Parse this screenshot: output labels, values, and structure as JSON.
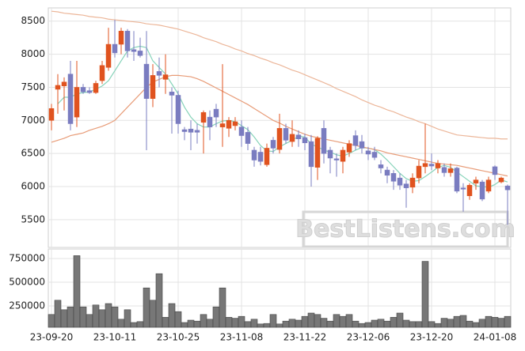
{
  "chart_data": {
    "type": "candlestick",
    "categories": [
      "23-09-20",
      null,
      null,
      null,
      null,
      null,
      null,
      null,
      null,
      null,
      "23-10-11",
      null,
      null,
      null,
      null,
      null,
      null,
      null,
      null,
      null,
      "23-10-25",
      null,
      null,
      null,
      null,
      null,
      null,
      null,
      null,
      null,
      "23-11-08",
      null,
      null,
      null,
      null,
      null,
      null,
      null,
      null,
      null,
      "23-11-22",
      null,
      null,
      null,
      null,
      null,
      null,
      null,
      null,
      null,
      "23-12-06",
      null,
      null,
      null,
      null,
      null,
      null,
      null,
      null,
      null,
      "23-12-20",
      null,
      null,
      null,
      null,
      null,
      null,
      null,
      null,
      null,
      "24-01-08",
      null,
      null
    ],
    "open": [
      7000,
      7470,
      7520,
      7700,
      7050,
      7500,
      7450,
      7420,
      7600,
      7800,
      8150,
      8150,
      8350,
      8070,
      8050,
      7850,
      7330,
      7740,
      7620,
      7430,
      7380,
      6860,
      6870,
      6850,
      6970,
      7050,
      7170,
      6900,
      6880,
      6920,
      6900,
      6820,
      6550,
      6520,
      6330,
      6700,
      6560,
      6880,
      6680,
      6780,
      6740,
      6680,
      6290,
      6880,
      6550,
      6420,
      6380,
      6520,
      6770,
      6680,
      6540,
      6520,
      6330,
      6250,
      6200,
      6130,
      6040,
      5990,
      6130,
      6300,
      6340,
      6280,
      6290,
      6210,
      6280,
      5980,
      5860,
      6050,
      6070,
      5930,
      6300,
      6070,
      6010
    ],
    "high": [
      7250,
      7700,
      7650,
      7900,
      7900,
      7550,
      7500,
      7600,
      7900,
      8400,
      8520,
      8400,
      8380,
      8350,
      8250,
      8350,
      7850,
      7950,
      8000,
      7500,
      7450,
      6900,
      7000,
      6950,
      7150,
      7150,
      7250,
      7850,
      7050,
      7050,
      7000,
      6900,
      6600,
      6600,
      6650,
      6750,
      7100,
      6950,
      7000,
      6850,
      6800,
      6780,
      6760,
      7000,
      6600,
      6500,
      6600,
      6700,
      6850,
      6780,
      6600,
      6600,
      6400,
      6300,
      6250,
      6200,
      6100,
      6200,
      6400,
      6950,
      6500,
      6400,
      6350,
      6350,
      6300,
      6050,
      6050,
      6150,
      6100,
      6150,
      6320,
      6150,
      6030
    ],
    "low": [
      6850,
      7100,
      7150,
      6850,
      6900,
      7400,
      7400,
      7400,
      7550,
      7750,
      7950,
      8000,
      7950,
      7900,
      7950,
      6550,
      7200,
      7500,
      7400,
      6800,
      6800,
      6700,
      6550,
      6650,
      6500,
      6700,
      6900,
      6600,
      6750,
      6850,
      6600,
      6550,
      6300,
      6320,
      6300,
      6500,
      6500,
      6650,
      6600,
      6600,
      6550,
      6000,
      6100,
      6350,
      6200,
      6150,
      6200,
      6450,
      6550,
      6500,
      6400,
      6400,
      6200,
      6050,
      5950,
      5950,
      5680,
      5900,
      6050,
      6200,
      6250,
      6200,
      6150,
      6150,
      5900,
      5620,
      5800,
      5950,
      5780,
      5900,
      6100,
      6050,
      5420
    ],
    "close": [
      7180,
      7530,
      7580,
      6950,
      7500,
      7430,
      7420,
      7560,
      7830,
      8150,
      8020,
      8350,
      8050,
      8040,
      7980,
      7330,
      7680,
      7680,
      7690,
      7380,
      6950,
      6830,
      6820,
      6820,
      7120,
      6900,
      7050,
      6950,
      7000,
      6980,
      6770,
      6650,
      6400,
      6380,
      6580,
      6580,
      6880,
      6700,
      6790,
      6720,
      6660,
      6300,
      6730,
      6500,
      6430,
      6400,
      6550,
      6650,
      6620,
      6580,
      6490,
      6440,
      6280,
      6170,
      6080,
      6020,
      5980,
      6130,
      6310,
      6350,
      6310,
      6350,
      6210,
      6270,
      5930,
      5960,
      6020,
      6100,
      5810,
      6100,
      6180,
      6130,
      5950
    ],
    "up_color": "#e0531f",
    "down_color": "#7a7cc0",
    "ylim": [
      5080,
      8700
    ],
    "yticks": [
      5500,
      6000,
      6500,
      7000,
      7500,
      8000,
      8500
    ],
    "lines": [
      {
        "color": "#86d3b9",
        "values": [
          null,
          7250,
          7350,
          7350,
          7400,
          7420,
          7430,
          7470,
          7520,
          7600,
          7750,
          7900,
          8050,
          8100,
          8120,
          8100,
          7900,
          7800,
          7700,
          7550,
          7400,
          7200,
          7050,
          6950,
          6900,
          6900,
          6950,
          6990,
          7000,
          6980,
          6920,
          6860,
          6750,
          6620,
          6540,
          6530,
          6600,
          6650,
          6700,
          6760,
          6750,
          6640,
          6600,
          6550,
          6520,
          6480,
          6460,
          6500,
          6550,
          6590,
          6580,
          6560,
          6490,
          6400,
          6300,
          6200,
          6120,
          6080,
          6090,
          6150,
          6220,
          6290,
          6320,
          6290,
          6220,
          6150,
          6080,
          6010,
          6000,
          5990,
          6030,
          6100,
          6070
        ]
      },
      {
        "color": "#e89c78",
        "values": [
          6670,
          6700,
          6730,
          6770,
          6790,
          6810,
          6850,
          6880,
          6910,
          6950,
          7000,
          7100,
          7200,
          7300,
          7400,
          7500,
          7580,
          7620,
          7660,
          7680,
          7680,
          7670,
          7660,
          7630,
          7590,
          7540,
          7490,
          7440,
          7390,
          7340,
          7290,
          7240,
          7180,
          7120,
          7060,
          7000,
          6960,
          6910,
          6870,
          6830,
          6790,
          6760,
          6740,
          6720,
          6700,
          6680,
          6660,
          6640,
          6620,
          6600,
          6580,
          6560,
          6540,
          6510,
          6490,
          6470,
          6450,
          6430,
          6410,
          6390,
          6370,
          6350,
          6340,
          6330,
          6320,
          6300,
          6280,
          6260,
          6240,
          6220,
          6200,
          6180,
          6160
        ]
      },
      {
        "color": "#ecb699",
        "values": [
          8650,
          8640,
          8620,
          8610,
          8600,
          8590,
          8570,
          8560,
          8550,
          8530,
          8520,
          8510,
          8500,
          8490,
          8480,
          8460,
          8450,
          8440,
          8420,
          8400,
          8380,
          8350,
          8320,
          8290,
          8250,
          8220,
          8190,
          8150,
          8120,
          8080,
          8050,
          8010,
          7980,
          7940,
          7910,
          7870,
          7840,
          7800,
          7760,
          7730,
          7690,
          7650,
          7610,
          7570,
          7530,
          7480,
          7440,
          7400,
          7360,
          7310,
          7270,
          7230,
          7200,
          7160,
          7130,
          7090,
          7050,
          7020,
          6980,
          6950,
          6910,
          6870,
          6840,
          6810,
          6780,
          6770,
          6760,
          6750,
          6740,
          6730,
          6730,
          6720,
          6720
        ]
      }
    ],
    "volume": {
      "color": "#777777",
      "values": [
        160000,
        310000,
        210000,
        240000,
        780000,
        240000,
        160000,
        260000,
        210000,
        275000,
        240000,
        110000,
        210000,
        75000,
        85000,
        440000,
        310000,
        590000,
        130000,
        275000,
        190000,
        75000,
        100000,
        90000,
        160000,
        110000,
        240000,
        440000,
        130000,
        120000,
        140000,
        85000,
        110000,
        60000,
        65000,
        160000,
        60000,
        90000,
        110000,
        100000,
        140000,
        175000,
        160000,
        120000,
        90000,
        160000,
        140000,
        160000,
        90000,
        65000,
        75000,
        100000,
        110000,
        90000,
        130000,
        175000,
        100000,
        85000,
        85000,
        720000,
        85000,
        65000,
        120000,
        110000,
        140000,
        150000,
        90000,
        75000,
        110000,
        140000,
        130000,
        120000,
        140000
      ],
      "ylim": [
        25000,
        850000
      ],
      "yticks": [
        250000,
        500000,
        750000
      ]
    },
    "watermark": "BestListens.com",
    "grid": true
  }
}
